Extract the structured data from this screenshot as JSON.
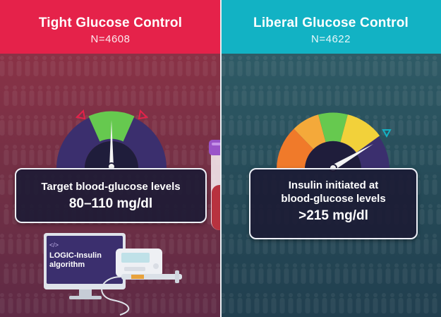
{
  "left": {
    "title": "Tight Glucose Control",
    "n": "N=4608",
    "box_line1": "Target blood-glucose levels",
    "box_line2": "80–110 mg/dl",
    "monitor_tag": "</>",
    "monitor_line1": "LOGIC-Insulin",
    "monitor_line2": "algorithm",
    "header_color": "#e5224a"
  },
  "right": {
    "title": "Liberal Glucose Control",
    "n": "N=4622",
    "box_line1": "Insulin initiated at",
    "box_line2": "blood-glucose levels",
    "box_line3": ">215 mg/dl",
    "header_color": "#12b2c4"
  }
}
